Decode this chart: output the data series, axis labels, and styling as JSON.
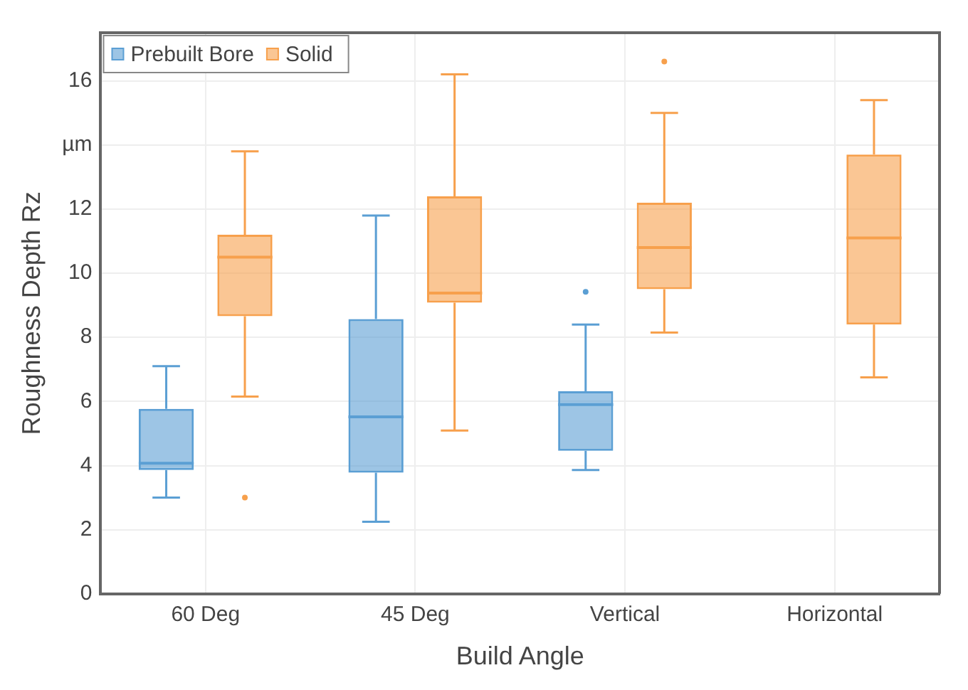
{
  "chart_data": {
    "type": "box",
    "xlabel": "Build Angle",
    "ylabel": "Roughness Depth Rz",
    "categories": [
      "60 Deg",
      "45 Deg",
      "Vertical",
      "Horizontal"
    ],
    "ylim": [
      0,
      17.5
    ],
    "yticks": [
      0,
      2,
      4,
      6,
      8,
      10,
      12,
      {
        "value": 14,
        "label": "µm"
      },
      16
    ],
    "grid": true,
    "legend": "top left",
    "series": [
      {
        "name": "Prebuilt Bore",
        "color": "#5b9fd4",
        "boxes": [
          {
            "low": 3.0,
            "q1": 3.86,
            "median": 4.07,
            "q3": 5.77,
            "high": 7.1
          },
          {
            "low": 2.25,
            "q1": 3.78,
            "median": 5.52,
            "q3": 8.57,
            "high": 11.8
          },
          {
            "low": 3.86,
            "q1": 4.46,
            "median": 5.9,
            "q3": 6.32,
            "high": 8.4,
            "outliers": [
              9.42
            ]
          },
          null
        ]
      },
      {
        "name": "Solid",
        "color": "#f7a04c",
        "boxes": [
          {
            "low": 6.15,
            "q1": 8.66,
            "median": 10.5,
            "q3": 11.2,
            "high": 13.8,
            "outliers": [
              3.0
            ]
          },
          {
            "low": 5.09,
            "q1": 9.08,
            "median": 9.38,
            "q3": 12.4,
            "high": 16.2
          },
          {
            "low": 8.15,
            "q1": 9.5,
            "median": 10.8,
            "q3": 12.2,
            "high": 15.0,
            "outliers": [
              16.6
            ]
          },
          {
            "low": 6.75,
            "q1": 8.4,
            "median": 11.1,
            "q3": 13.7,
            "high": 15.4
          }
        ]
      }
    ]
  }
}
